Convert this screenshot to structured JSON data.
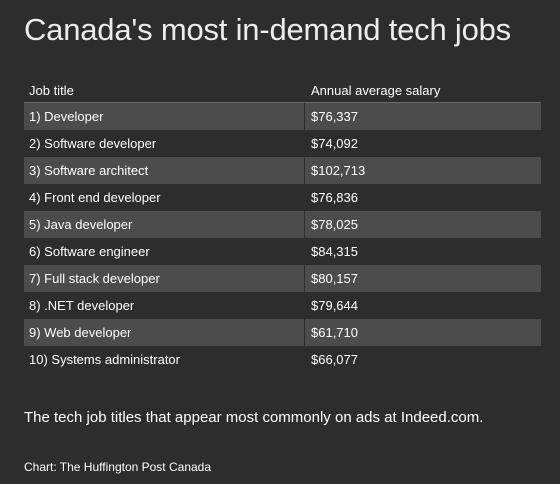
{
  "title": "Canada's most in-demand tech jobs",
  "caption": "The tech job titles that appear most commonly on ads at Indeed.com.",
  "credit": "Chart: The Huffington Post Canada",
  "colors": {
    "background": "#2d2d2d",
    "row_shaded": "#4c4c4c",
    "text": "#ffffff"
  },
  "chart_data": {
    "type": "table",
    "title": "Canada's most in-demand tech jobs",
    "columns": [
      "Job title",
      "Annual average salary"
    ],
    "rows": [
      [
        "1) Developer",
        "$76,337"
      ],
      [
        "2) Software developer",
        "$74,092"
      ],
      [
        "3) Software architect",
        "$102,713"
      ],
      [
        "4) Front end developer",
        "$76,836"
      ],
      [
        "5) Java developer",
        "$78,025"
      ],
      [
        "6) Software engineer",
        "$84,315"
      ],
      [
        "7) Full stack developer",
        "$80,157"
      ],
      [
        "8) .NET developer",
        "$79,644"
      ],
      [
        "9) Web developer",
        "$61,710"
      ],
      [
        "10) Systems administrator",
        "$66,077"
      ]
    ]
  }
}
